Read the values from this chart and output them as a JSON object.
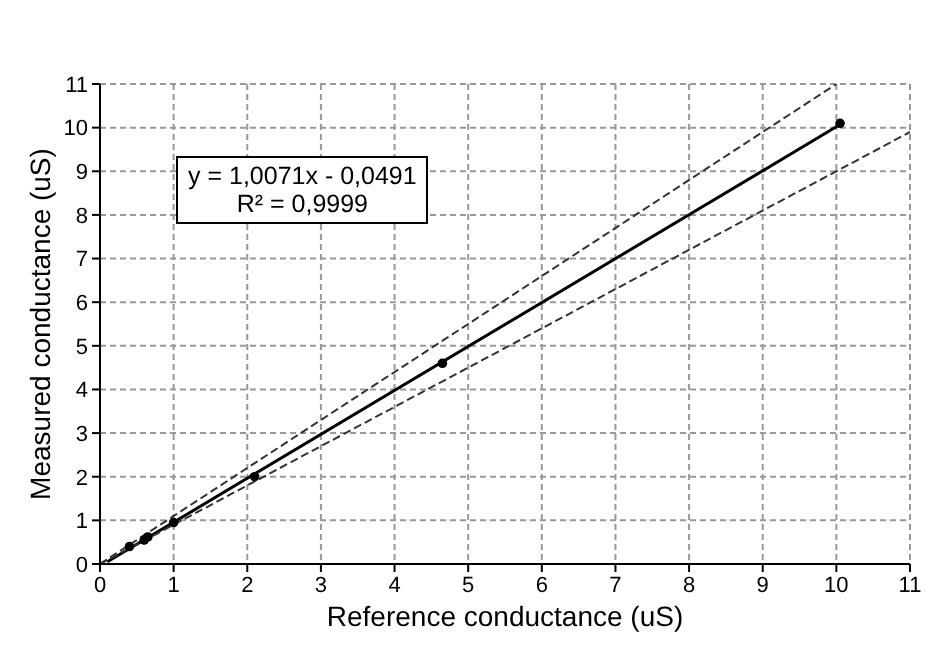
{
  "chart_data": {
    "type": "scatter",
    "xlabel": "Reference conductance (uS)",
    "ylabel": "Measured conductance (uS)",
    "annotations": [
      "y = 1,0071x - 0,0491",
      "R² = 0,9999"
    ],
    "xlim": [
      0,
      11
    ],
    "xticks": [
      0,
      1,
      2,
      3,
      4,
      5,
      6,
      7,
      8,
      9,
      10,
      11
    ],
    "ylim": [
      0,
      11
    ],
    "yticks": [
      0,
      1,
      2,
      3,
      4,
      5,
      6,
      7,
      8,
      9,
      10,
      11
    ],
    "grid": true,
    "series": [
      {
        "color": "#000000",
        "marker": "circle",
        "x": [
          0.4,
          0.6,
          0.65,
          1.0,
          2.1,
          4.65,
          10.05
        ],
        "values": [
          0.4,
          0.55,
          0.62,
          0.95,
          2.0,
          4.6,
          10.1
        ]
      },
      {
        "type": "line",
        "color": "#000000",
        "line_style": "solid",
        "marker": "none",
        "x": [
          0.1,
          10.05
        ],
        "values": [
          0.05,
          10.07
        ]
      },
      {
        "type": "line",
        "color": "#333333",
        "line_style": "dashed",
        "marker": "none",
        "x": [
          0,
          10
        ],
        "values": [
          0,
          11
        ]
      },
      {
        "type": "line",
        "color": "#333333",
        "line_style": "dashed",
        "marker": "none",
        "x": [
          0,
          11
        ],
        "values": [
          0,
          9.9
        ]
      }
    ]
  }
}
